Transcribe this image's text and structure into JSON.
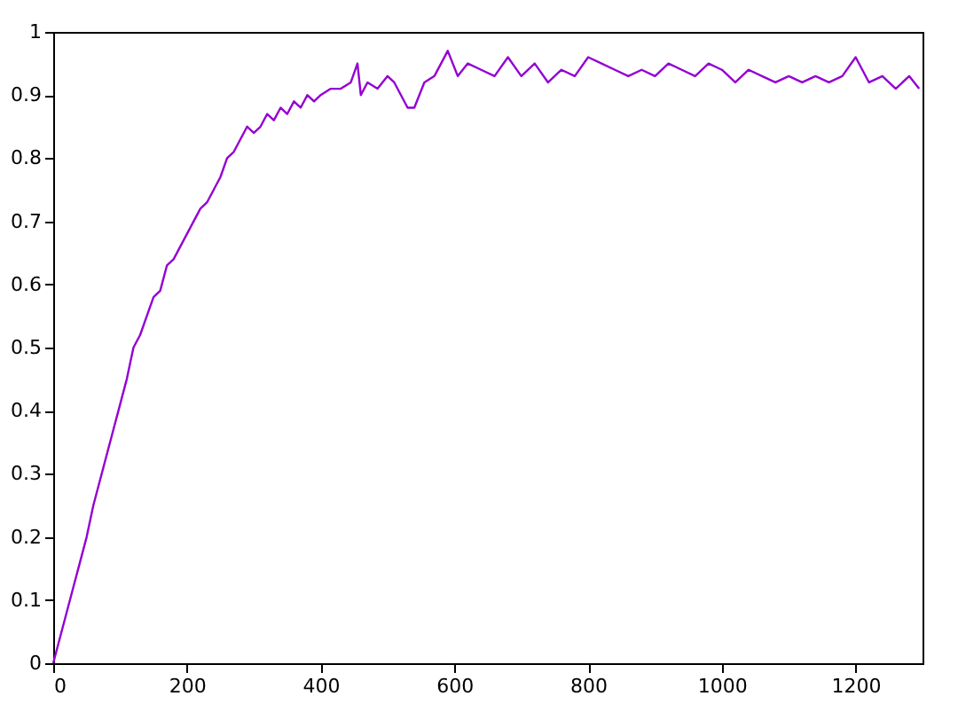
{
  "chart_data": {
    "type": "line",
    "x": [
      0,
      10,
      20,
      30,
      40,
      50,
      60,
      70,
      80,
      90,
      100,
      110,
      120,
      130,
      140,
      150,
      160,
      170,
      180,
      190,
      200,
      210,
      220,
      230,
      240,
      250,
      260,
      270,
      280,
      290,
      300,
      310,
      320,
      330,
      340,
      350,
      360,
      370,
      380,
      390,
      400,
      415,
      430,
      445,
      455,
      460,
      470,
      485,
      500,
      510,
      520,
      530,
      540,
      555,
      570,
      590,
      605,
      620,
      640,
      660,
      680,
      700,
      720,
      740,
      760,
      780,
      800,
      820,
      840,
      860,
      880,
      900,
      920,
      940,
      960,
      980,
      1000,
      1020,
      1040,
      1060,
      1080,
      1100,
      1120,
      1140,
      1160,
      1180,
      1200,
      1220,
      1240,
      1260,
      1280,
      1295
    ],
    "series": [
      {
        "color": "#9400d3",
        "values": [
          0,
          0.04,
          0.08,
          0.12,
          0.16,
          0.2,
          0.25,
          0.29,
          0.33,
          0.37,
          0.41,
          0.45,
          0.5,
          0.52,
          0.55,
          0.58,
          0.59,
          0.63,
          0.64,
          0.66,
          0.68,
          0.7,
          0.72,
          0.73,
          0.75,
          0.77,
          0.8,
          0.81,
          0.83,
          0.85,
          0.84,
          0.85,
          0.87,
          0.86,
          0.88,
          0.87,
          0.89,
          0.88,
          0.9,
          0.89,
          0.9,
          0.91,
          0.91,
          0.92,
          0.95,
          0.9,
          0.92,
          0.91,
          0.93,
          0.92,
          0.9,
          0.88,
          0.88,
          0.92,
          0.93,
          0.97,
          0.93,
          0.95,
          0.94,
          0.93,
          0.96,
          0.93,
          0.95,
          0.92,
          0.94,
          0.93,
          0.96,
          0.95,
          0.94,
          0.93,
          0.94,
          0.93,
          0.95,
          0.94,
          0.93,
          0.95,
          0.94,
          0.92,
          0.94,
          0.93,
          0.92,
          0.93,
          0.92,
          0.93,
          0.92,
          0.93,
          0.96,
          0.92,
          0.93,
          0.91,
          0.93,
          0.91
        ]
      }
    ],
    "xlim": [
      0,
      1300
    ],
    "ylim": [
      0,
      1
    ],
    "xticks": [
      0,
      200,
      400,
      600,
      800,
      1000,
      1200
    ],
    "yticks": [
      0,
      0.1,
      0.2,
      0.3,
      0.4,
      0.5,
      0.6,
      0.7,
      0.8,
      0.9,
      1
    ],
    "grid": false,
    "line_style": "solid"
  }
}
